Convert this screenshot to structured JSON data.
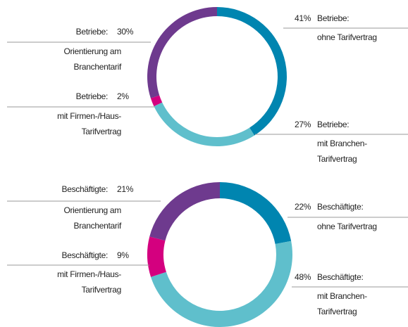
{
  "chart_data": [
    {
      "type": "donut",
      "group": "Betriebe:",
      "categories": [
        [
          "ohne Tarifvertrag"
        ],
        [
          "mit Branchen-",
          "Tarifvertrag"
        ],
        [
          "mit Firmen-/Haus-",
          "Tarifvertrag"
        ],
        [
          "Orientierung am",
          "Branchentarif"
        ]
      ],
      "values": [
        41,
        27,
        2,
        30
      ],
      "value_labels": [
        "41%",
        "27%",
        "2%",
        "30%"
      ],
      "colors": [
        "#0085b0",
        "#5fbfcc",
        "#d4007f",
        "#6e3a8e"
      ]
    },
    {
      "type": "donut",
      "group": "Beschäftigte:",
      "categories": [
        [
          "ohne Tarifvertrag"
        ],
        [
          "mit Branchen-",
          "Tarifvertrag"
        ],
        [
          "mit Firmen-/Haus-",
          "Tarifvertrag"
        ],
        [
          "Orientierung am",
          "Branchentarif"
        ]
      ],
      "values": [
        22,
        48,
        9,
        21
      ],
      "value_labels": [
        "22%",
        "48%",
        "9%",
        "21%"
      ],
      "colors": [
        "#0085b0",
        "#5fbfcc",
        "#d4007f",
        "#6e3a8e"
      ]
    }
  ]
}
